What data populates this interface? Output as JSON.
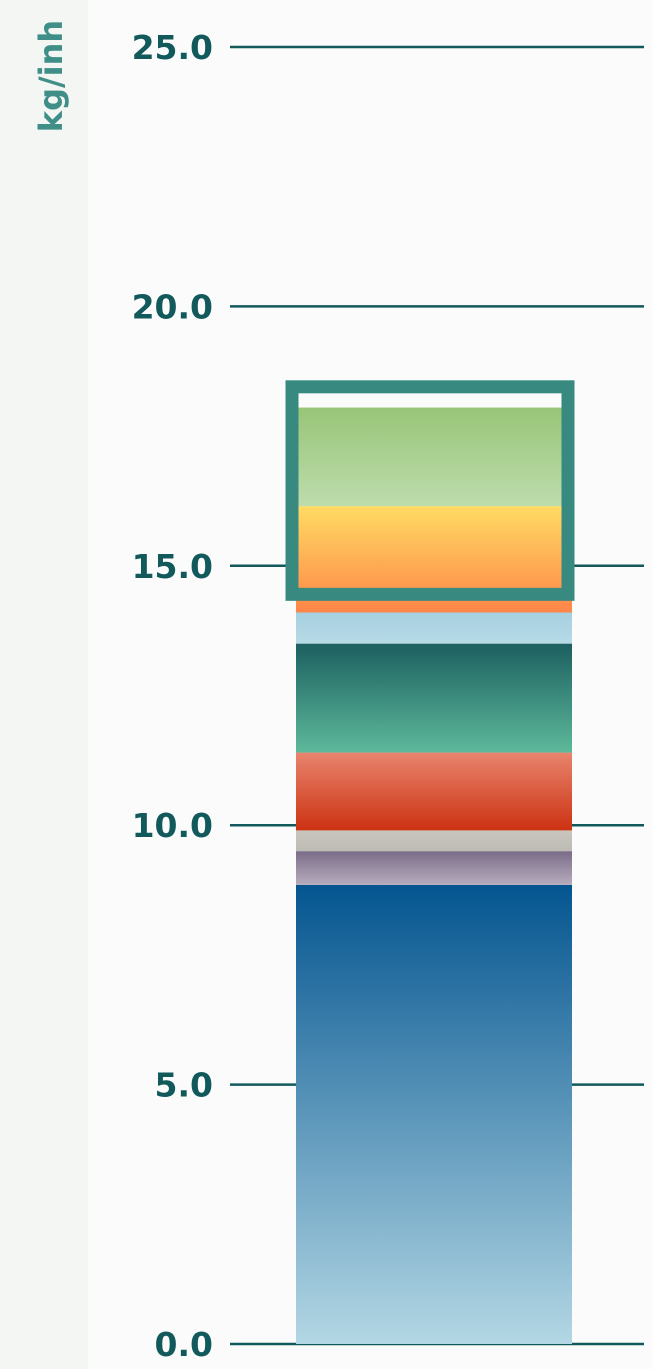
{
  "chart_data": {
    "type": "bar",
    "subtype": "stacked",
    "ylabel": "kg/inh",
    "ylim": [
      0,
      25
    ],
    "yticks": [
      "0.0",
      "5.0",
      "10.0",
      "15.0",
      "20.0",
      "25.0"
    ],
    "grid": "horizontal",
    "categories": [
      ""
    ],
    "series": [
      {
        "values": [
          8.85
        ],
        "color_top": "#045590",
        "color_bottom": "#b3d7e4"
      },
      {
        "values": [
          0.65
        ],
        "color_top": "#7a6c88",
        "color_bottom": "#b7adbd"
      },
      {
        "values": [
          0.4
        ],
        "color_top": "#c8c5bd",
        "color_bottom": "#bdbcb4"
      },
      {
        "values": [
          1.5
        ],
        "color_top": "#e8846e",
        "color_bottom": "#cc3211"
      },
      {
        "values": [
          2.1
        ],
        "color_top": "#1c5f60",
        "color_bottom": "#5db99a"
      },
      {
        "values": [
          0.6
        ],
        "color_top": "#a6d0e0",
        "color_bottom": "#b7dae6"
      },
      {
        "values": [
          2.05
        ],
        "color_top": "#fedb63",
        "color_bottom": "#ff8548"
      },
      {
        "values": [
          1.9
        ],
        "color_top": "#98c578",
        "color_bottom": "#bddcac"
      }
    ],
    "highlight": {
      "from": 14.45,
      "to": 18.45,
      "color": "#388a80"
    }
  }
}
